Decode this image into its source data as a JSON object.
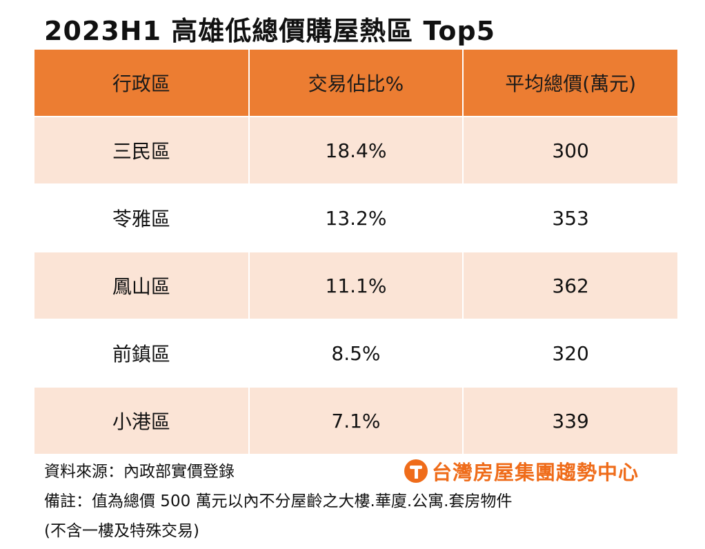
{
  "title": "2023H1 高雄低總價購屋熱區 Top5",
  "chart_data": {
    "type": "table",
    "title": "2023H1 高雄低總價購屋熱區 Top5",
    "columns": [
      "行政區",
      "交易佔比%",
      "平均總價(萬元)"
    ],
    "rows": [
      [
        "三民區",
        "18.4%",
        "300"
      ],
      [
        "苓雅區",
        "13.2%",
        "353"
      ],
      [
        "鳳山區",
        "11.1%",
        "362"
      ],
      [
        "前鎮區",
        "8.5%",
        "320"
      ],
      [
        "小港區",
        "7.1%",
        "339"
      ]
    ]
  },
  "footer": {
    "source": "資料來源：內政部實價登錄",
    "note": "備註：值為總價 500 萬元以內不分屋齡之大樓.華廈.公寓.套房物件",
    "note2": "(不含一樓及特殊交易)",
    "logo_text": "台灣房屋集團趨勢中心"
  },
  "colors": {
    "header": "#ec7d32",
    "band": "#fbe4d6",
    "logo": "#ef6c1a"
  }
}
